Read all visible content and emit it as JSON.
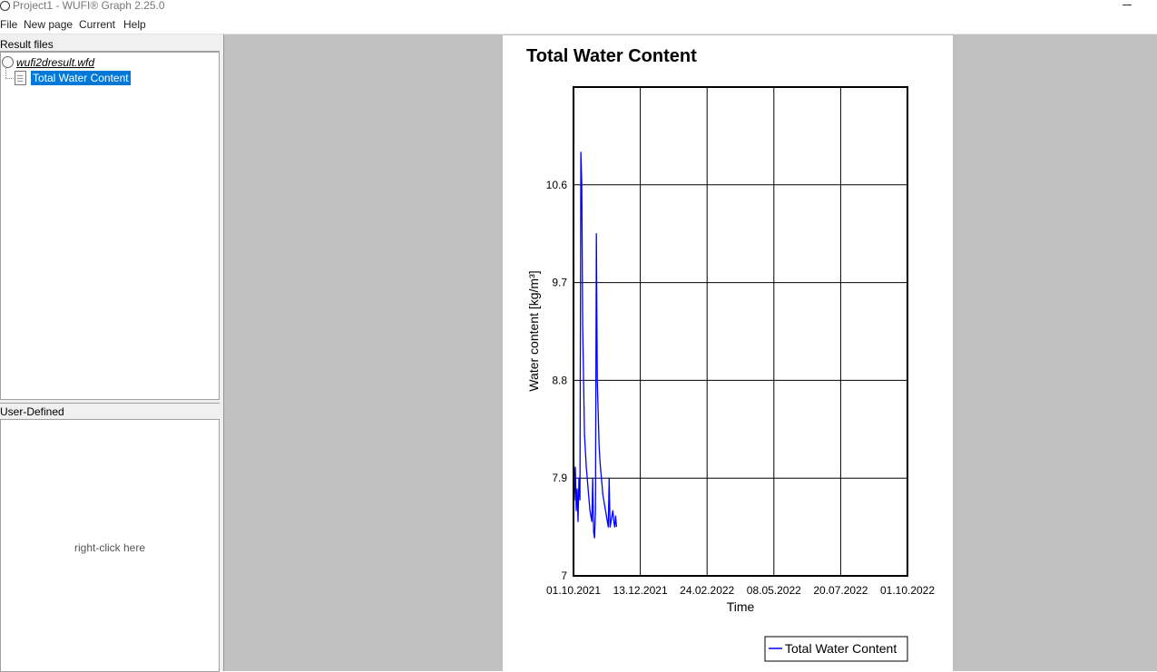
{
  "window": {
    "title": "Project1 - WUFI® Graph 2.25.0"
  },
  "menu": {
    "items": [
      "File",
      "New page",
      "Current",
      "Help"
    ]
  },
  "left_panel": {
    "result_files_header": "Result files",
    "tree": {
      "file": "wufi2dresult.wfd",
      "child": "Total Water Content"
    },
    "user_defined_header": "User-Defined",
    "user_defined_hint": "right-click here"
  },
  "colors": {
    "selection": "#0078d7",
    "series": "#0000ff",
    "workspace": "#c0c0c0"
  },
  "chart_data": {
    "type": "line",
    "title": "Total Water Content",
    "xlabel": "Time",
    "ylabel": "Water content [kg/m³]",
    "ylim": [
      7,
      11.5
    ],
    "yticks": [
      7,
      7.9,
      8.8,
      9.7,
      10.6
    ],
    "ytick_labels": [
      "7",
      "7.9",
      "8.8",
      "9.7",
      "10.6"
    ],
    "xlim": [
      "2021-10-01",
      "2022-10-01"
    ],
    "xtick_labels": [
      "01.10.2021",
      "13.12.2021",
      "24.02.2022",
      "08.05.2022",
      "20.07.2022",
      "01.10.2022"
    ],
    "grid": true,
    "legend": "bottom-right",
    "series": [
      {
        "name": "Total Water Content",
        "color": "#0000ff",
        "x": [
          "2021-10-01",
          "2021-10-02",
          "2021-10-03",
          "2021-10-04",
          "2021-10-05",
          "2021-10-06",
          "2021-10-07",
          "2021-10-08",
          "2021-10-09",
          "2021-10-10",
          "2021-10-11",
          "2021-10-12",
          "2021-10-13",
          "2021-10-15",
          "2021-10-17",
          "2021-10-19",
          "2021-10-21",
          "2021-10-22",
          "2021-10-23",
          "2021-10-24",
          "2021-10-25",
          "2021-10-26",
          "2021-10-27",
          "2021-10-28",
          "2021-10-29",
          "2021-10-30",
          "2021-10-31",
          "2021-11-01",
          "2021-11-02",
          "2021-11-03",
          "2021-11-04",
          "2021-11-05",
          "2021-11-06",
          "2021-11-07",
          "2021-11-08",
          "2021-11-09",
          "2021-11-10",
          "2021-11-11",
          "2021-11-12",
          "2021-11-13",
          "2021-11-14",
          "2021-11-15",
          "2021-11-16",
          "2021-11-17"
        ],
        "y": [
          8.3,
          7.7,
          8.0,
          7.6,
          7.8,
          7.5,
          7.9,
          7.7,
          10.9,
          10.6,
          9.3,
          8.8,
          8.3,
          8.0,
          7.8,
          7.6,
          7.5,
          7.9,
          7.4,
          7.35,
          7.6,
          10.15,
          8.8,
          8.5,
          8.2,
          8.05,
          7.95,
          7.85,
          7.75,
          7.7,
          7.65,
          7.6,
          7.55,
          7.5,
          7.45,
          7.9,
          7.45,
          7.5,
          7.55,
          7.6,
          7.5,
          7.45,
          7.55,
          7.45
        ]
      }
    ]
  }
}
